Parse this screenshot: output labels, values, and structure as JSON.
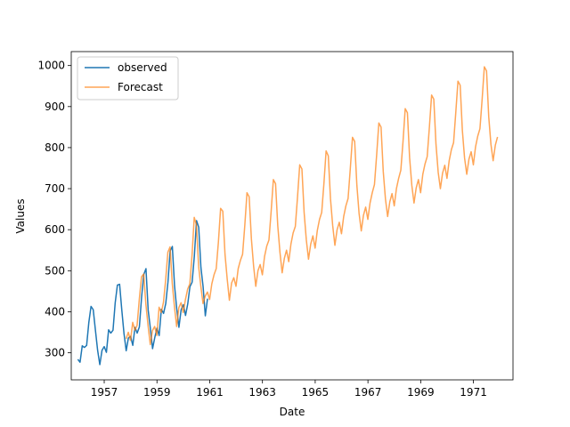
{
  "chart_data": {
    "type": "line",
    "title": "",
    "xlabel": "Date",
    "ylabel": "Values",
    "xlim": [
      1955.75,
      1972.5
    ],
    "ylim": [
      234,
      1034
    ],
    "x_ticks": [
      {
        "value": 1957,
        "label": "1957"
      },
      {
        "value": 1959,
        "label": "1959"
      },
      {
        "value": 1961,
        "label": "1961"
      },
      {
        "value": 1963,
        "label": "1963"
      },
      {
        "value": 1965,
        "label": "1965"
      },
      {
        "value": 1967,
        "label": "1967"
      },
      {
        "value": 1969,
        "label": "1969"
      },
      {
        "value": 1971,
        "label": "1971"
      }
    ],
    "y_ticks": [
      {
        "value": 300,
        "label": "300"
      },
      {
        "value": 400,
        "label": "400"
      },
      {
        "value": 500,
        "label": "500"
      },
      {
        "value": 600,
        "label": "600"
      },
      {
        "value": 700,
        "label": "700"
      },
      {
        "value": 800,
        "label": "800"
      },
      {
        "value": 900,
        "label": "900"
      },
      {
        "value": 1000,
        "label": "1000"
      }
    ],
    "grid": false,
    "legend_position": "top-left",
    "series": [
      {
        "name": "observed",
        "color": "#1f77b4",
        "start": 1956.0,
        "step": 0.083333,
        "values": [
          284,
          277,
          317,
          313,
          318,
          374,
          413,
          405,
          355,
          306,
          271,
          306,
          315,
          301,
          356,
          348,
          355,
          422,
          465,
          467,
          404,
          347,
          305,
          336,
          340,
          318,
          362,
          348,
          363,
          435,
          491,
          505,
          404,
          359,
          310,
          337,
          360,
          342,
          406,
          396,
          420,
          472,
          548,
          559,
          463,
          407,
          362,
          405,
          417,
          391,
          419,
          461,
          472,
          535,
          622,
          606,
          508,
          461,
          390,
          432
        ]
      },
      {
        "name": "Forecast",
        "color": "#ff7f0e",
        "opacity": 0.7,
        "start": 1957.83,
        "step": 0.083333,
        "values": [
          334,
          350,
          330,
          374,
          355,
          367,
          430,
          485,
          492,
          418,
          366,
          320,
          354,
          364,
          342,
          411,
          398,
          423,
          478,
          545,
          558,
          469,
          412,
          364,
          410,
          422,
          398,
          430,
          455,
          468,
          538,
          630,
          612,
          510,
          462,
          420,
          438,
          448,
          430,
          468,
          490,
          505,
          570,
          652,
          645,
          540,
          480,
          428,
          470,
          483,
          462,
          505,
          525,
          540,
          610,
          690,
          680,
          578,
          512,
          462,
          500,
          515,
          490,
          535,
          560,
          575,
          645,
          722,
          712,
          610,
          545,
          495,
          530,
          550,
          522,
          565,
          592,
          608,
          680,
          758,
          748,
          642,
          575,
          528,
          565,
          585,
          555,
          598,
          625,
          642,
          712,
          792,
          780,
          675,
          610,
          562,
          600,
          618,
          590,
          632,
          658,
          676,
          748,
          825,
          815,
          708,
          640,
          597,
          635,
          655,
          625,
          665,
          690,
          710,
          782,
          860,
          850,
          742,
          675,
          632,
          668,
          688,
          658,
          700,
          725,
          745,
          815,
          895,
          885,
          775,
          708,
          665,
          702,
          722,
          690,
          735,
          760,
          778,
          850,
          928,
          918,
          808,
          740,
          700,
          738,
          757,
          725,
          768,
          795,
          812,
          885,
          962,
          952,
          842,
          775,
          735,
          772,
          790,
          758,
          802,
          828,
          846,
          918,
          997,
          987,
          875,
          808,
          768,
          806,
          826
        ]
      }
    ]
  }
}
